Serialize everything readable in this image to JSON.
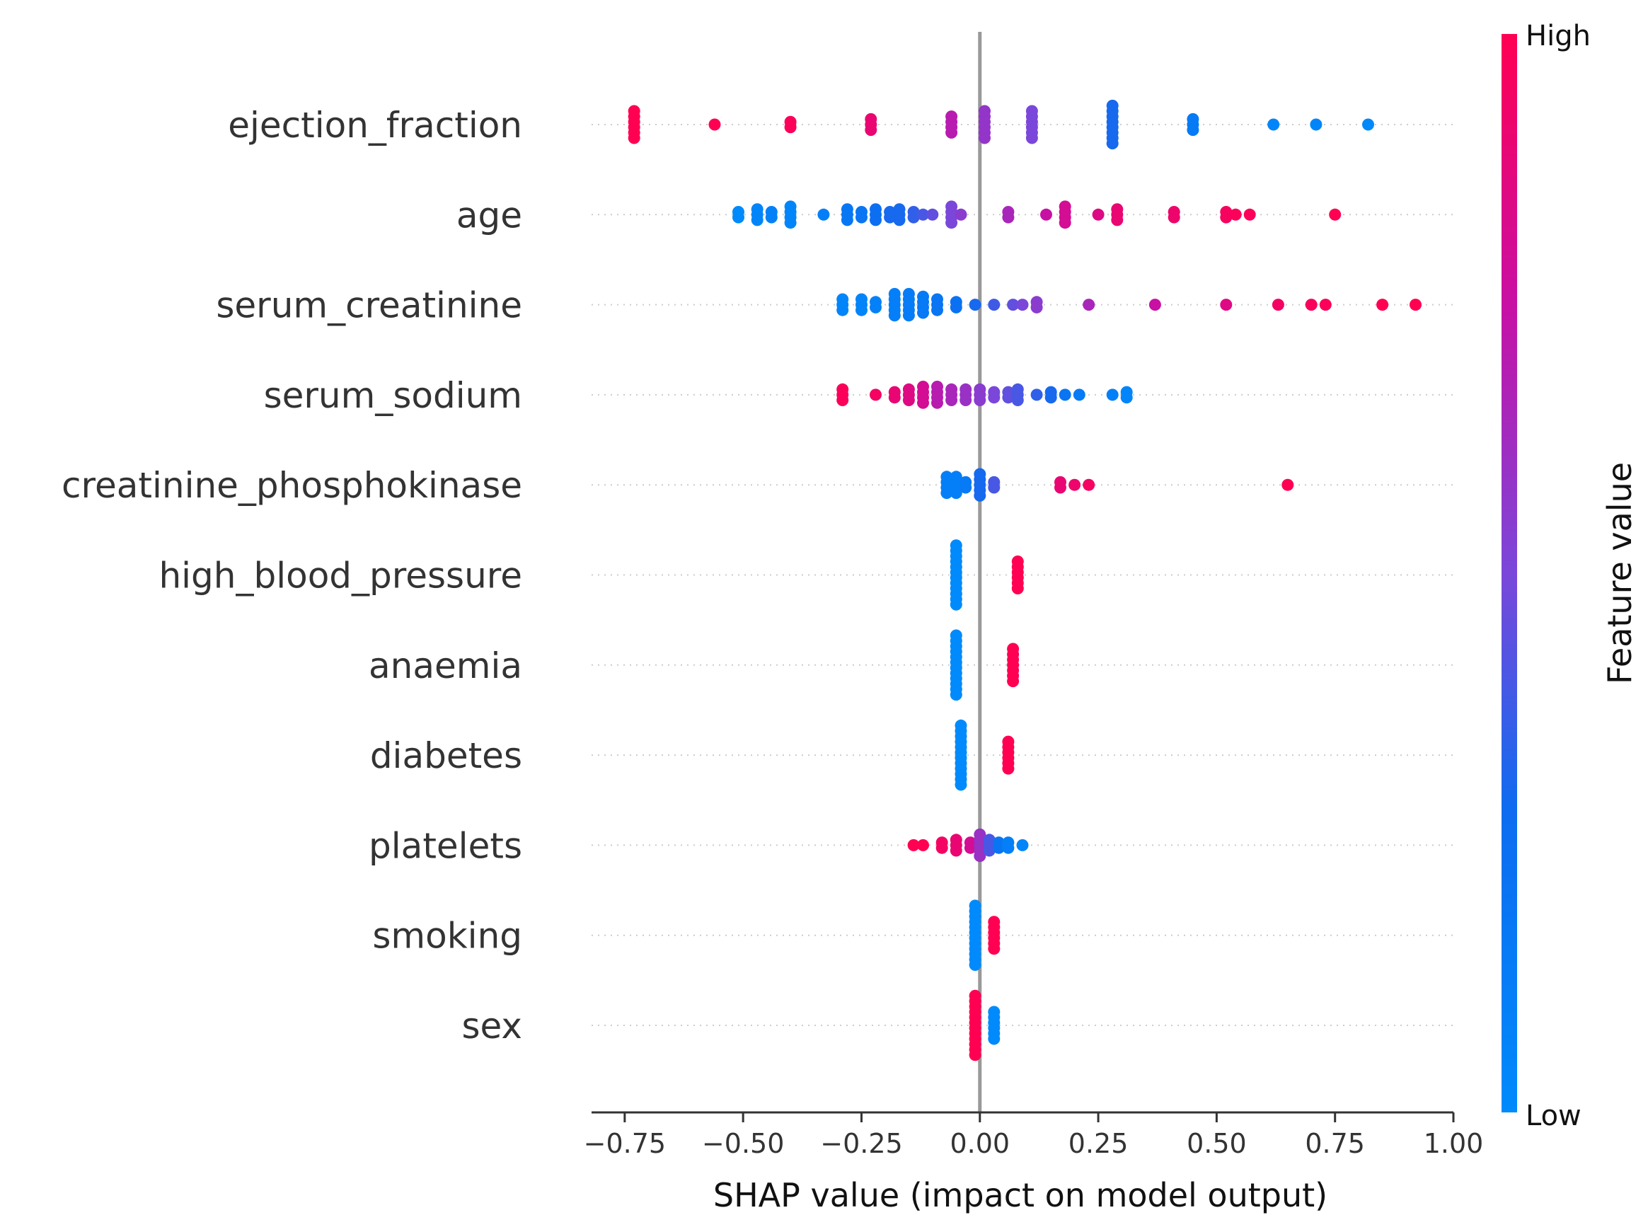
{
  "chart_data": {
    "type": "scatter",
    "subtype": "shap-beeswarm",
    "title": "",
    "xlabel": "SHAP value (impact on model output)",
    "ylabel": "",
    "xlim": [
      -0.82,
      1.0
    ],
    "xticks": [
      -0.75,
      -0.5,
      -0.25,
      0.0,
      0.25,
      0.5,
      0.75,
      1.0
    ],
    "xtick_labels": [
      "−0.75",
      "−0.50",
      "−0.25",
      "0.00",
      "0.25",
      "0.50",
      "0.75",
      "1.00"
    ],
    "zero_line": 0.0,
    "grid": "dotted horizontal lines per feature",
    "colorbar": {
      "label": "Feature value",
      "high_label": "High",
      "low_label": "Low",
      "colors": [
        "#008afb",
        "#0d6cf0",
        "#7a47da",
        "#c810a4",
        "#ff0052"
      ]
    },
    "colors": {
      "low": "#008afb",
      "high": "#ff0052",
      "zero_line": "#999999",
      "grid": "#cccccc",
      "axis": "#333333"
    },
    "features": [
      {
        "name": "ejection_fraction",
        "points": [
          [
            -0.73,
            1.0,
            6
          ],
          [
            -0.56,
            1.0,
            1
          ],
          [
            -0.4,
            0.98,
            2
          ],
          [
            -0.23,
            0.9,
            3
          ],
          [
            -0.06,
            0.7,
            4
          ],
          [
            0.01,
            0.58,
            6
          ],
          [
            0.11,
            0.5,
            6
          ],
          [
            0.28,
            0.3,
            8
          ],
          [
            0.45,
            0.15,
            3
          ],
          [
            0.62,
            0.05,
            1
          ],
          [
            0.71,
            0.05,
            1
          ],
          [
            0.82,
            0.02,
            1
          ]
        ]
      },
      {
        "name": "age",
        "points": [
          [
            -0.51,
            0.0,
            2
          ],
          [
            -0.47,
            0.05,
            3
          ],
          [
            -0.44,
            0.08,
            2
          ],
          [
            -0.4,
            0.05,
            4
          ],
          [
            -0.33,
            0.1,
            1
          ],
          [
            -0.28,
            0.18,
            3
          ],
          [
            -0.25,
            0.2,
            2
          ],
          [
            -0.22,
            0.25,
            3
          ],
          [
            -0.19,
            0.3,
            2
          ],
          [
            -0.17,
            0.3,
            3
          ],
          [
            -0.14,
            0.35,
            2
          ],
          [
            -0.12,
            0.4,
            1
          ],
          [
            -0.1,
            0.45,
            1
          ],
          [
            -0.06,
            0.5,
            4
          ],
          [
            -0.04,
            0.55,
            1
          ],
          [
            0.06,
            0.65,
            2
          ],
          [
            0.14,
            0.75,
            1
          ],
          [
            0.18,
            0.8,
            4
          ],
          [
            0.25,
            0.85,
            1
          ],
          [
            0.29,
            0.9,
            3
          ],
          [
            0.41,
            0.92,
            2
          ],
          [
            0.52,
            0.96,
            2
          ],
          [
            0.54,
            0.98,
            1
          ],
          [
            0.57,
            0.98,
            1
          ],
          [
            0.75,
            1.0,
            1
          ]
        ]
      },
      {
        "name": "serum_creatinine",
        "points": [
          [
            -0.29,
            0.05,
            3
          ],
          [
            -0.25,
            0.06,
            3
          ],
          [
            -0.22,
            0.08,
            2
          ],
          [
            -0.18,
            0.1,
            5
          ],
          [
            -0.15,
            0.12,
            5
          ],
          [
            -0.12,
            0.15,
            4
          ],
          [
            -0.09,
            0.2,
            3
          ],
          [
            -0.05,
            0.22,
            2
          ],
          [
            -0.01,
            0.3,
            1
          ],
          [
            0.03,
            0.38,
            1
          ],
          [
            0.07,
            0.45,
            1
          ],
          [
            0.09,
            0.5,
            1
          ],
          [
            0.12,
            0.55,
            2
          ],
          [
            0.23,
            0.65,
            1
          ],
          [
            0.37,
            0.75,
            1
          ],
          [
            0.52,
            0.85,
            1
          ],
          [
            0.63,
            0.95,
            1
          ],
          [
            0.7,
            0.97,
            1
          ],
          [
            0.73,
            0.98,
            1
          ],
          [
            0.85,
            1.0,
            1
          ],
          [
            0.92,
            1.0,
            1
          ]
        ]
      },
      {
        "name": "serum_sodium",
        "points": [
          [
            -0.29,
            0.98,
            3
          ],
          [
            -0.22,
            0.95,
            1
          ],
          [
            -0.18,
            0.9,
            2
          ],
          [
            -0.15,
            0.85,
            3
          ],
          [
            -0.12,
            0.8,
            4
          ],
          [
            -0.09,
            0.7,
            4
          ],
          [
            -0.06,
            0.65,
            3
          ],
          [
            -0.03,
            0.6,
            3
          ],
          [
            0.0,
            0.55,
            3
          ],
          [
            0.03,
            0.5,
            2
          ],
          [
            0.06,
            0.45,
            2
          ],
          [
            0.08,
            0.4,
            3
          ],
          [
            0.12,
            0.35,
            1
          ],
          [
            0.15,
            0.3,
            2
          ],
          [
            0.18,
            0.2,
            1
          ],
          [
            0.21,
            0.15,
            1
          ],
          [
            0.28,
            0.1,
            1
          ],
          [
            0.31,
            0.05,
            2
          ]
        ]
      },
      {
        "name": "creatinine_phosphokinase",
        "points": [
          [
            -0.07,
            0.1,
            4
          ],
          [
            -0.05,
            0.1,
            4
          ],
          [
            -0.03,
            0.15,
            2
          ],
          [
            0.0,
            0.3,
            5
          ],
          [
            0.03,
            0.4,
            2
          ],
          [
            0.17,
            0.9,
            2
          ],
          [
            0.2,
            0.92,
            1
          ],
          [
            0.23,
            0.95,
            1
          ],
          [
            0.65,
            1.0,
            1
          ]
        ]
      },
      {
        "name": "high_blood_pressure",
        "points": [
          [
            -0.05,
            0.0,
            12
          ],
          [
            0.08,
            1.0,
            6
          ]
        ]
      },
      {
        "name": "anaemia",
        "points": [
          [
            -0.05,
            0.0,
            12
          ],
          [
            0.07,
            1.0,
            7
          ]
        ]
      },
      {
        "name": "diabetes",
        "points": [
          [
            -0.04,
            0.0,
            12
          ],
          [
            0.06,
            1.0,
            6
          ]
        ]
      },
      {
        "name": "platelets",
        "points": [
          [
            -0.14,
            1.0,
            1
          ],
          [
            -0.12,
            1.0,
            1
          ],
          [
            -0.08,
            0.95,
            2
          ],
          [
            -0.05,
            0.9,
            3
          ],
          [
            -0.02,
            0.8,
            2
          ],
          [
            0.0,
            0.6,
            5
          ],
          [
            0.02,
            0.4,
            3
          ],
          [
            0.04,
            0.2,
            2
          ],
          [
            0.06,
            0.1,
            2
          ],
          [
            0.09,
            0.05,
            1
          ]
        ]
      },
      {
        "name": "smoking",
        "points": [
          [
            -0.01,
            0.0,
            12
          ],
          [
            0.03,
            1.0,
            6
          ]
        ]
      },
      {
        "name": "sex",
        "points": [
          [
            -0.01,
            1.0,
            12
          ],
          [
            0.03,
            0.0,
            6
          ]
        ]
      }
    ]
  }
}
